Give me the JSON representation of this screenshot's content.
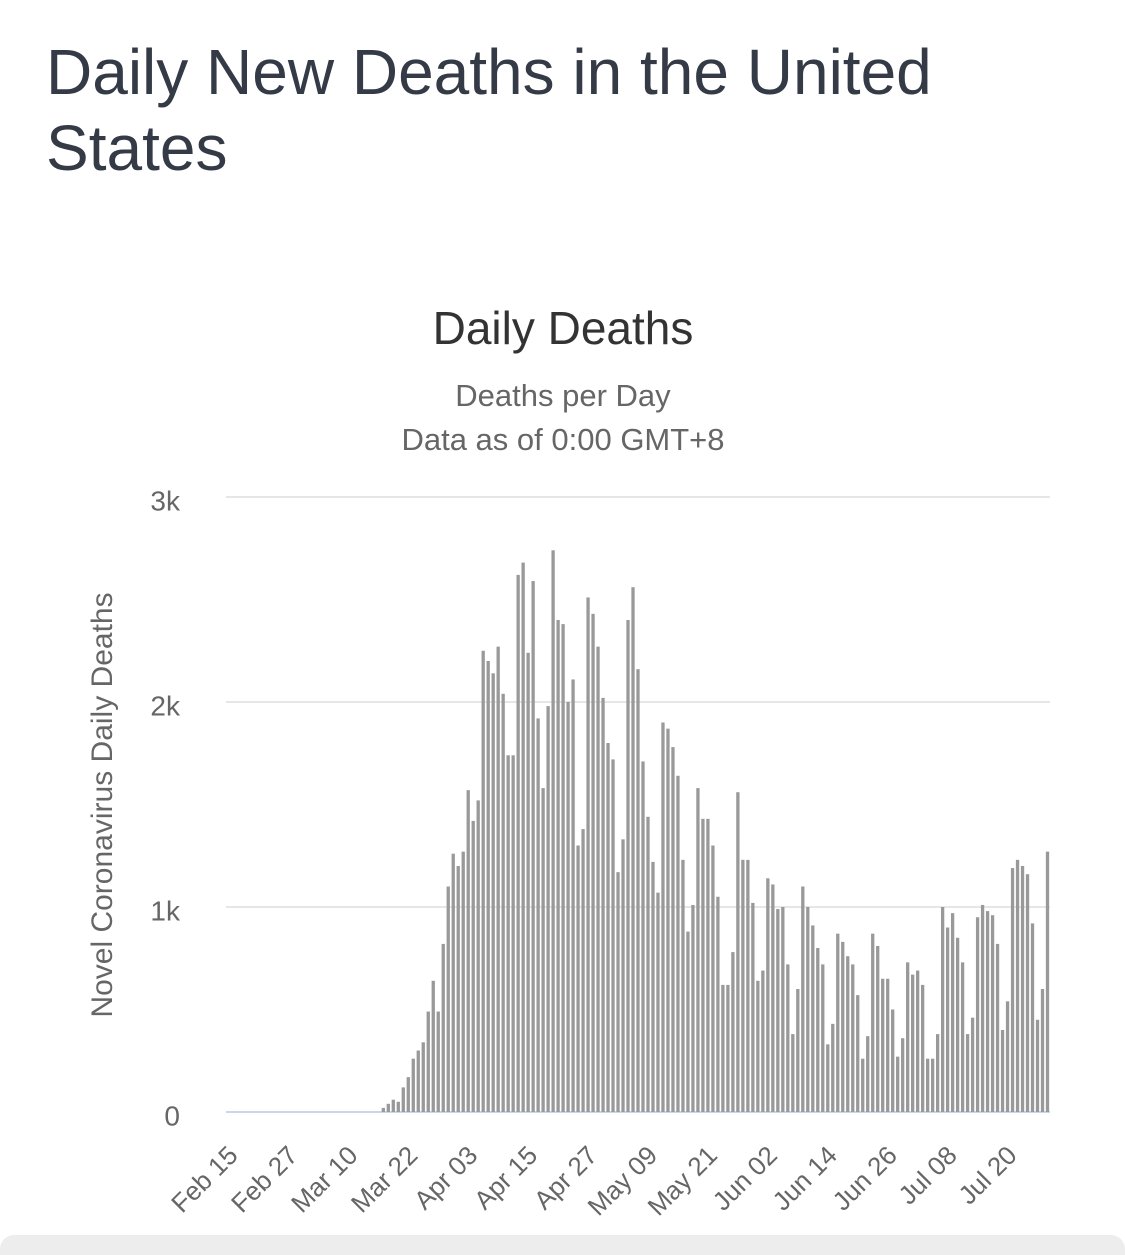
{
  "page_title": "Daily New Deaths in the United States",
  "chart_data": {
    "type": "bar",
    "title": "Daily Deaths",
    "subtitle": [
      "Deaths per Day",
      "Data as of 0:00 GMT+8"
    ],
    "y_label": "Novel Coronavirus Daily Deaths",
    "color": "#999999",
    "grid": true,
    "categories": [
      "Feb 15",
      null,
      null,
      null,
      null,
      null,
      null,
      null,
      null,
      null,
      null,
      null,
      "Feb 27",
      null,
      null,
      null,
      null,
      null,
      null,
      null,
      null,
      null,
      null,
      null,
      "Mar 10",
      null,
      null,
      null,
      null,
      null,
      null,
      null,
      null,
      null,
      null,
      null,
      "Mar 22",
      null,
      null,
      null,
      null,
      null,
      null,
      null,
      null,
      null,
      null,
      null,
      "Apr 03",
      null,
      null,
      null,
      null,
      null,
      null,
      null,
      null,
      null,
      null,
      null,
      "Apr 15",
      null,
      null,
      null,
      null,
      null,
      null,
      null,
      null,
      null,
      null,
      null,
      "Apr 27",
      null,
      null,
      null,
      null,
      null,
      null,
      null,
      null,
      null,
      null,
      null,
      "May 09",
      null,
      null,
      null,
      null,
      null,
      null,
      null,
      null,
      null,
      null,
      null,
      "May 21",
      null,
      null,
      null,
      null,
      null,
      null,
      null,
      null,
      null,
      null,
      null,
      "Jun 02",
      null,
      null,
      null,
      null,
      null,
      null,
      null,
      null,
      null,
      null,
      null,
      "Jun 14",
      null,
      null,
      null,
      null,
      null,
      null,
      null,
      null,
      null,
      null,
      null,
      "Jun 26",
      null,
      null,
      null,
      null,
      null,
      null,
      null,
      null,
      null,
      null,
      null,
      "Jul 08",
      null,
      null,
      null,
      null,
      null,
      null,
      null,
      null,
      null,
      null,
      null,
      "Jul 20",
      null,
      null,
      null,
      null,
      null,
      null,
      null,
      null
    ],
    "values": [
      0,
      0,
      0,
      0,
      0,
      0,
      0,
      0,
      0,
      0,
      0,
      0,
      0,
      0,
      0,
      0,
      0,
      0,
      0,
      0,
      0,
      0,
      0,
      0,
      0,
      0,
      0,
      0,
      0,
      0,
      0,
      20,
      40,
      60,
      50,
      120,
      170,
      260,
      300,
      340,
      490,
      640,
      490,
      820,
      1100,
      1260,
      1200,
      1270,
      1570,
      1420,
      1520,
      2250,
      2200,
      2140,
      2270,
      2040,
      1740,
      1740,
      2620,
      2680,
      2240,
      2590,
      1920,
      1580,
      1980,
      2740,
      2400,
      2380,
      2000,
      2110,
      1300,
      1380,
      2510,
      2430,
      2270,
      2020,
      1800,
      1720,
      1170,
      1330,
      2400,
      2560,
      2160,
      1710,
      1440,
      1220,
      1070,
      1900,
      1870,
      1780,
      1640,
      1230,
      880,
      1010,
      1580,
      1430,
      1430,
      1300,
      1050,
      620,
      620,
      780,
      1560,
      1230,
      1230,
      1020,
      640,
      690,
      1140,
      1110,
      990,
      1000,
      720,
      380,
      600,
      1100,
      1000,
      910,
      800,
      720,
      330,
      430,
      870,
      830,
      760,
      720,
      570,
      260,
      370,
      870,
      810,
      650,
      650,
      500,
      270,
      360,
      730,
      670,
      690,
      620,
      260,
      260,
      380,
      1000,
      900,
      970,
      850,
      730,
      380,
      460,
      950,
      1010,
      980,
      960,
      820,
      400,
      540,
      1190,
      1230,
      1200,
      1160,
      920,
      450,
      600,
      1270
    ],
    "ylim": [
      0,
      3000
    ],
    "yticks": [
      0,
      {
        "value": 1000,
        "label": "1k"
      },
      {
        "value": 2000,
        "label": "2k"
      },
      {
        "value": 3000,
        "label": "3k"
      }
    ]
  }
}
